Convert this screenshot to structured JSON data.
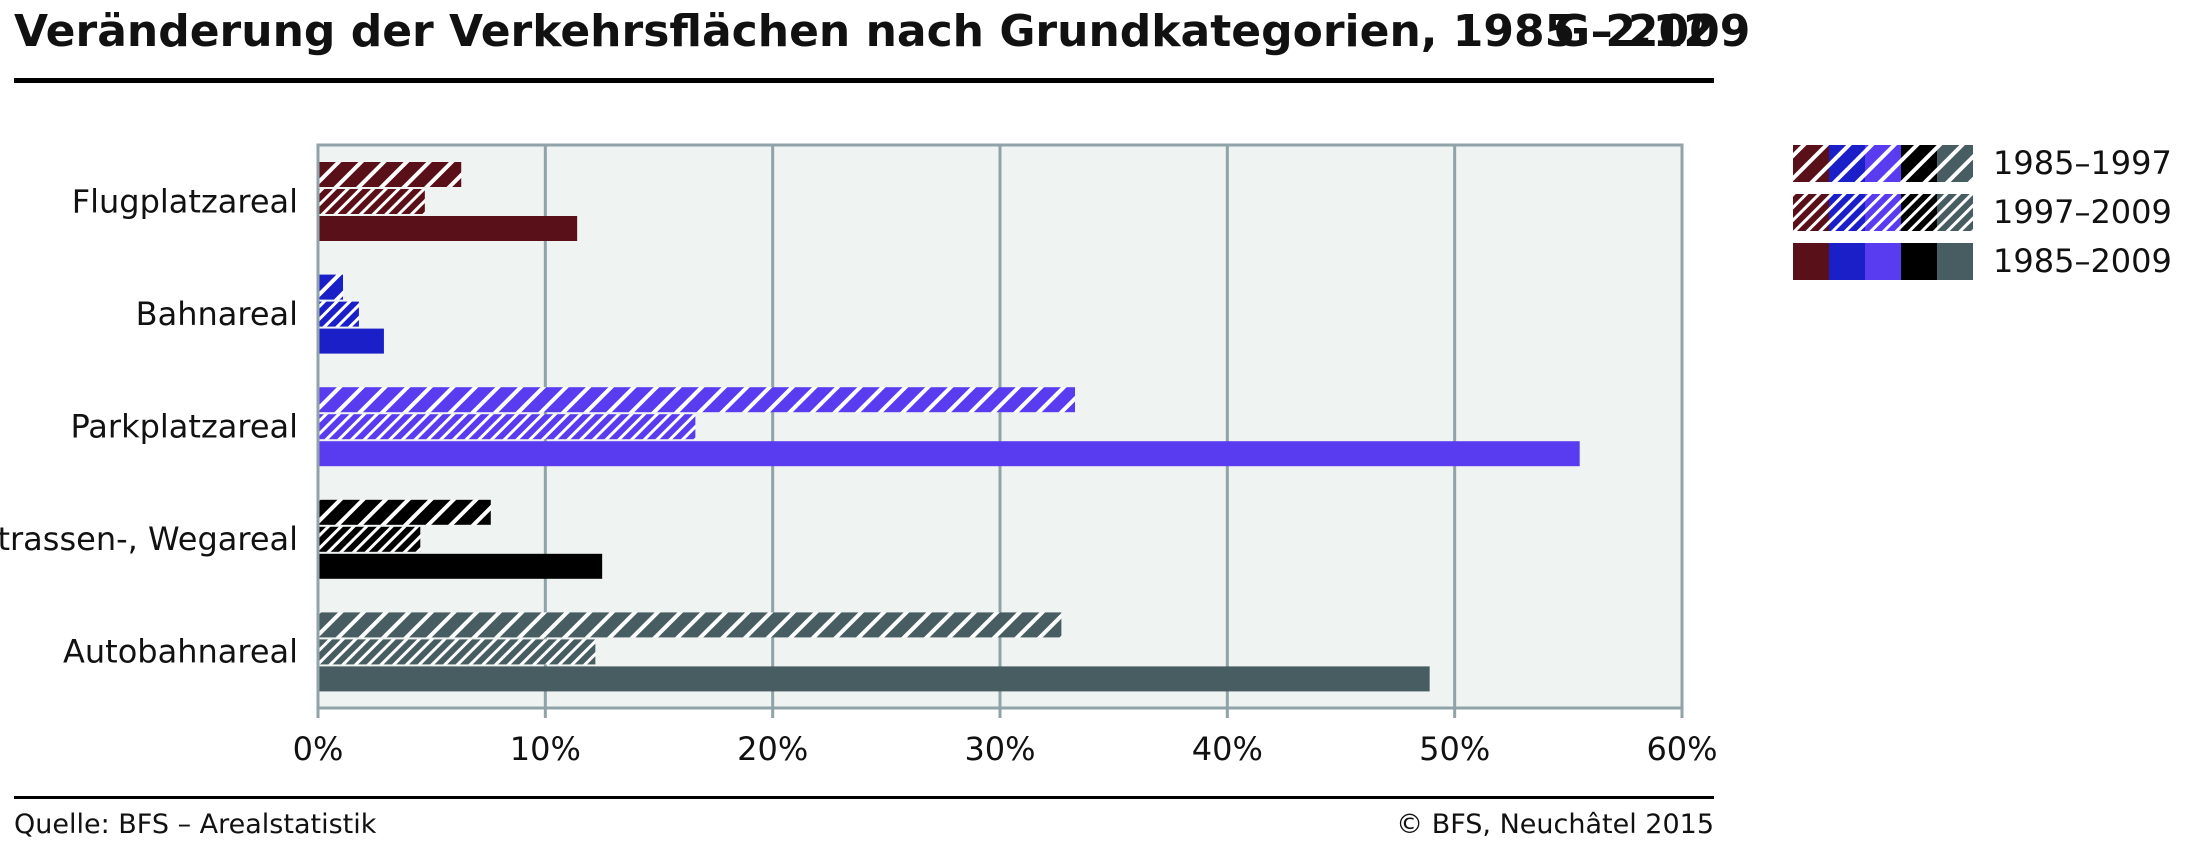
{
  "header": {
    "title": "Veränderung der Verkehrsflächen nach Grundkategorien, 1985 – 2009",
    "figure_number": "G 2.12"
  },
  "footer": {
    "source": "Quelle: BFS – Arealstatistik",
    "copyright": "© BFS, Neuchâtel 2015"
  },
  "chart_data": {
    "type": "bar",
    "orientation": "horizontal",
    "categories": [
      "Flugplatzareal",
      "Bahnareal",
      "Parkplatzareal",
      "Strassen-, Wegareal",
      "Autobahnareal"
    ],
    "series": [
      {
        "name": "1985–1997",
        "pattern": "hatch-dense",
        "values": [
          6.3,
          1.1,
          33.3,
          7.6,
          32.7
        ]
      },
      {
        "name": "1997–2009",
        "pattern": "hatch-light",
        "values": [
          4.7,
          1.8,
          16.6,
          4.5,
          12.2
        ]
      },
      {
        "name": "1985–2009",
        "pattern": "solid",
        "values": [
          11.4,
          2.9,
          55.5,
          12.5,
          48.9
        ]
      }
    ],
    "category_colors": [
      "#5a1018",
      "#1a1fc8",
      "#5a3cf0",
      "#000000",
      "#485d62"
    ],
    "xlim": [
      0,
      60
    ],
    "xticks": [
      "0%",
      "10%",
      "20%",
      "30%",
      "40%",
      "50%",
      "60%"
    ],
    "xtick_values": [
      0,
      10,
      20,
      30,
      40,
      50,
      60
    ],
    "grid": true,
    "plot_background": "#eff3f1",
    "grid_color": "#8fa3a8",
    "legend_position": "right"
  }
}
